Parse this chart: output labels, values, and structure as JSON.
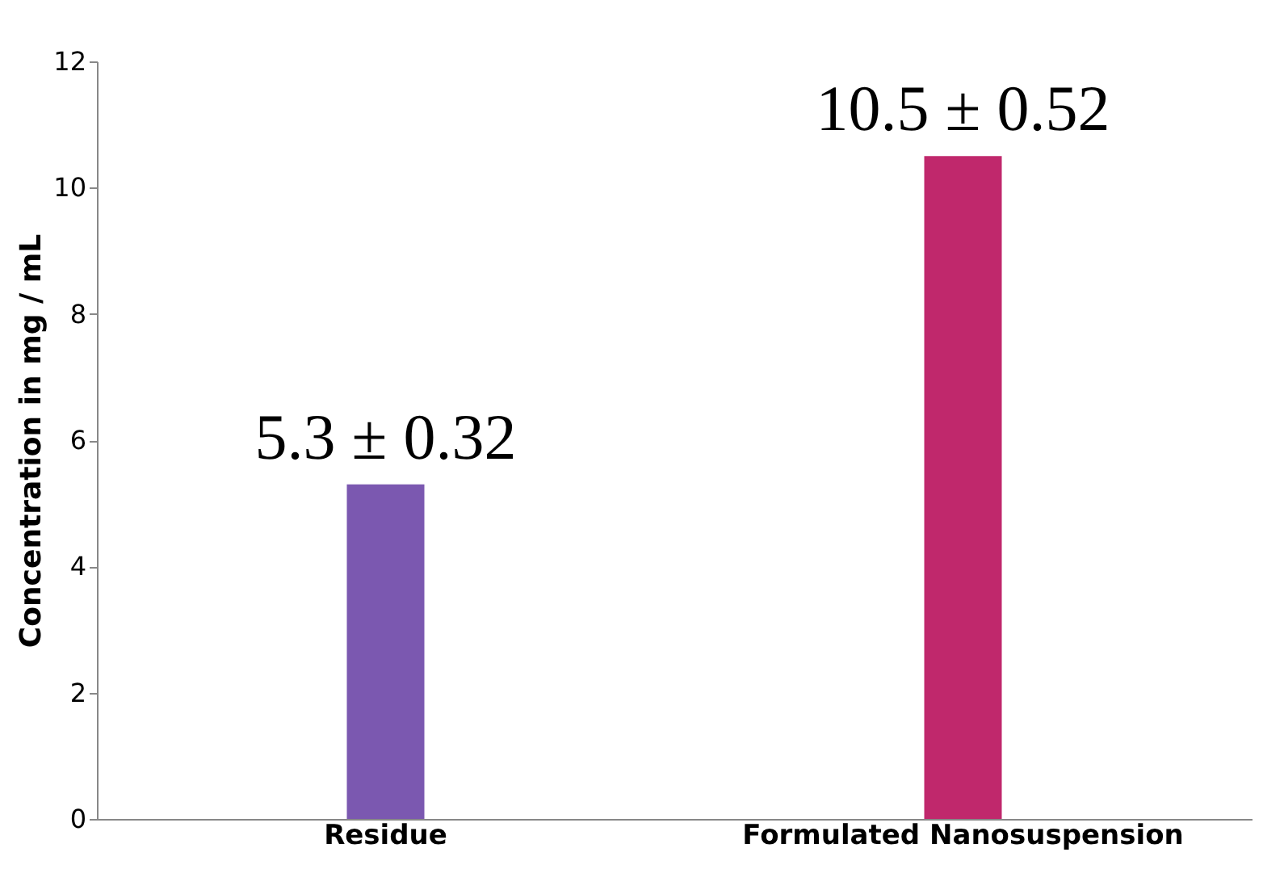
{
  "chart_data": {
    "type": "bar",
    "ylabel": "Concentration in mg / mL",
    "categories": [
      "Residue",
      "Formulated Nanosuspension"
    ],
    "values": [
      5.3,
      10.5
    ],
    "colors": [
      "#7b58b0",
      "#c0286c"
    ],
    "value_labels": [
      "5.3 ± 0.32",
      "10.5 ± 0.52"
    ],
    "ylim": [
      0,
      12
    ],
    "yticks": [
      0,
      2,
      4,
      6,
      8,
      10,
      12
    ],
    "grid": false
  }
}
